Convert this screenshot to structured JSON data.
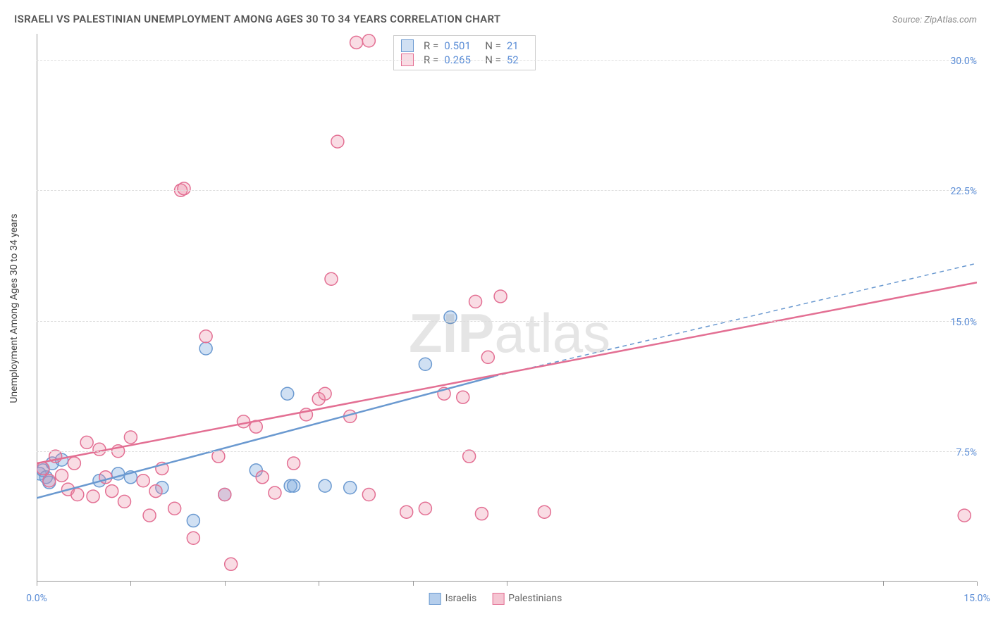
{
  "title": "ISRAELI VS PALESTINIAN UNEMPLOYMENT AMONG AGES 30 TO 34 YEARS CORRELATION CHART",
  "source": "Source: ZipAtlas.com",
  "ylabel": "Unemployment Among Ages 30 to 34 years",
  "watermark_bold": "ZIP",
  "watermark_rest": "atlas",
  "chart": {
    "type": "scatter",
    "xlim": [
      0,
      15
    ],
    "ylim": [
      0,
      31.5
    ],
    "xticks": [
      0,
      1.5,
      3.0,
      4.5,
      6.0,
      7.5,
      13.5,
      15.0
    ],
    "xtick_labels": {
      "0": "0.0%",
      "15": "15.0%"
    },
    "yticks": [
      7.5,
      15.0,
      22.5,
      30.0
    ],
    "ytick_labels": [
      "7.5%",
      "15.0%",
      "22.5%",
      "30.0%"
    ],
    "grid_color": "#dddddd",
    "axis_color": "#999999",
    "tick_label_color": "#5b8dd6",
    "marker_radius": 9,
    "marker_stroke_width": 1.5,
    "series": [
      {
        "name": "Israelis",
        "label": "Israelis",
        "fill": "rgba(120,165,220,0.35)",
        "stroke": "#6a99d0",
        "R": "0.501",
        "N": "21",
        "trend": {
          "x1": 0,
          "y1": 4.8,
          "x2": 7.3,
          "y2": 11.8,
          "width": 2.5
        },
        "trend_ext": {
          "x1": 7.3,
          "y1": 11.8,
          "x2": 15,
          "y2": 18.3,
          "dash": "6,5",
          "width": 1.5
        },
        "points": [
          [
            0.05,
            6.2
          ],
          [
            0.1,
            6.4
          ],
          [
            0.15,
            6.0
          ],
          [
            0.2,
            5.7
          ],
          [
            0.25,
            6.8
          ],
          [
            0.4,
            7.0
          ],
          [
            1.0,
            5.8
          ],
          [
            1.3,
            6.2
          ],
          [
            1.5,
            6.0
          ],
          [
            2.0,
            5.4
          ],
          [
            2.5,
            3.5
          ],
          [
            2.7,
            13.4
          ],
          [
            3.0,
            5.0
          ],
          [
            3.5,
            6.4
          ],
          [
            4.0,
            10.8
          ],
          [
            4.05,
            5.5
          ],
          [
            4.1,
            5.5
          ],
          [
            4.6,
            5.5
          ],
          [
            5.0,
            5.4
          ],
          [
            6.2,
            12.5
          ],
          [
            6.6,
            15.2
          ]
        ]
      },
      {
        "name": "Palestinians",
        "label": "Palestinians",
        "fill": "rgba(235,140,165,0.30)",
        "stroke": "#e36f93",
        "R": "0.265",
        "N": "52",
        "trend": {
          "x1": 0,
          "y1": 6.8,
          "x2": 15,
          "y2": 17.2,
          "width": 2.5
        },
        "points": [
          [
            0.1,
            6.5
          ],
          [
            0.2,
            5.8
          ],
          [
            0.3,
            7.2
          ],
          [
            0.4,
            6.1
          ],
          [
            0.5,
            5.3
          ],
          [
            0.6,
            6.8
          ],
          [
            0.65,
            5.0
          ],
          [
            0.8,
            8.0
          ],
          [
            0.9,
            4.9
          ],
          [
            1.0,
            7.6
          ],
          [
            1.1,
            6.0
          ],
          [
            1.2,
            5.2
          ],
          [
            1.3,
            7.5
          ],
          [
            1.4,
            4.6
          ],
          [
            1.5,
            8.3
          ],
          [
            1.7,
            5.8
          ],
          [
            1.8,
            3.8
          ],
          [
            1.9,
            5.2
          ],
          [
            2.0,
            6.5
          ],
          [
            2.2,
            4.2
          ],
          [
            2.3,
            22.5
          ],
          [
            2.35,
            22.6
          ],
          [
            2.5,
            2.5
          ],
          [
            2.7,
            14.1
          ],
          [
            2.9,
            7.2
          ],
          [
            3.0,
            5.0
          ],
          [
            3.1,
            1.0
          ],
          [
            3.3,
            9.2
          ],
          [
            3.5,
            8.9
          ],
          [
            3.6,
            6.0
          ],
          [
            3.8,
            5.1
          ],
          [
            4.1,
            6.8
          ],
          [
            4.3,
            9.6
          ],
          [
            4.5,
            10.5
          ],
          [
            4.6,
            10.8
          ],
          [
            4.7,
            17.4
          ],
          [
            4.8,
            25.3
          ],
          [
            5.0,
            9.5
          ],
          [
            5.1,
            31.0
          ],
          [
            5.3,
            31.1
          ],
          [
            5.3,
            5.0
          ],
          [
            5.9,
            4.0
          ],
          [
            6.2,
            4.2
          ],
          [
            6.5,
            10.8
          ],
          [
            6.8,
            10.6
          ],
          [
            6.9,
            7.2
          ],
          [
            7.0,
            16.1
          ],
          [
            7.1,
            3.9
          ],
          [
            7.2,
            12.9
          ],
          [
            7.4,
            16.4
          ],
          [
            8.1,
            4.0
          ],
          [
            14.8,
            3.8
          ]
        ]
      }
    ]
  },
  "legend_bottom": [
    {
      "label": "Israelis",
      "fill": "rgba(120,165,220,0.55)",
      "stroke": "#6a99d0"
    },
    {
      "label": "Palestinians",
      "fill": "rgba(235,140,165,0.50)",
      "stroke": "#e36f93"
    }
  ]
}
